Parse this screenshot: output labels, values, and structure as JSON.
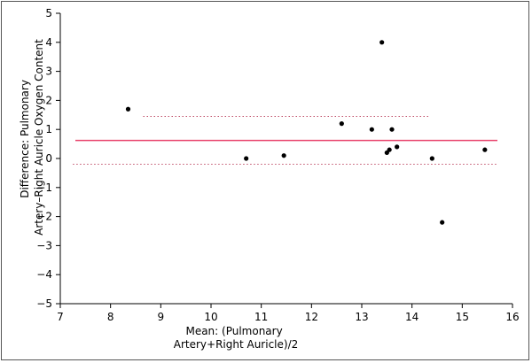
{
  "chart_data": {
    "type": "scatter",
    "title": "",
    "xlabel_lines": [
      "Mean: (Pulmonary",
      "Artery+Right Auricle)/2"
    ],
    "ylabel_lines": [
      "Difference: Pulmonary",
      "Artery–Right Auricle Oxygen Content"
    ],
    "xlim": [
      7,
      16
    ],
    "ylim": [
      -5,
      5
    ],
    "x_ticks": [
      7,
      8,
      9,
      10,
      11,
      12,
      13,
      14,
      15,
      16
    ],
    "y_ticks": [
      5,
      4,
      3,
      2,
      1,
      0,
      -1,
      -2,
      -3,
      -4,
      -5
    ],
    "y_tick_labels": [
      "5",
      "4",
      "3",
      "2",
      "1",
      "0",
      "−1",
      "−2",
      "−3",
      "−4",
      "−5"
    ],
    "grid": false,
    "points": [
      {
        "x": 8.35,
        "y": 1.7
      },
      {
        "x": 10.7,
        "y": 0.0
      },
      {
        "x": 11.45,
        "y": 0.1
      },
      {
        "x": 12.6,
        "y": 1.2
      },
      {
        "x": 13.2,
        "y": 1.0
      },
      {
        "x": 13.4,
        "y": 4.0
      },
      {
        "x": 13.5,
        "y": 0.2
      },
      {
        "x": 13.55,
        "y": 0.3
      },
      {
        "x": 13.6,
        "y": 1.0
      },
      {
        "x": 13.7,
        "y": 0.4
      },
      {
        "x": 14.4,
        "y": 0.0
      },
      {
        "x": 14.6,
        "y": -2.2
      },
      {
        "x": 15.45,
        "y": 0.3
      }
    ],
    "mean_line": {
      "y": 0.62,
      "x_range": [
        7.3,
        15.7
      ],
      "color": "#e8436b"
    },
    "upper_limit_line": {
      "y": 1.45,
      "x_range": [
        8.65,
        14.35
      ],
      "color": "#c0506a"
    },
    "lower_limit_line": {
      "y": -0.2,
      "x_range": [
        7.25,
        15.7
      ],
      "color": "#c0506a"
    },
    "point_color": "#000000",
    "axis_color": "#000000"
  }
}
